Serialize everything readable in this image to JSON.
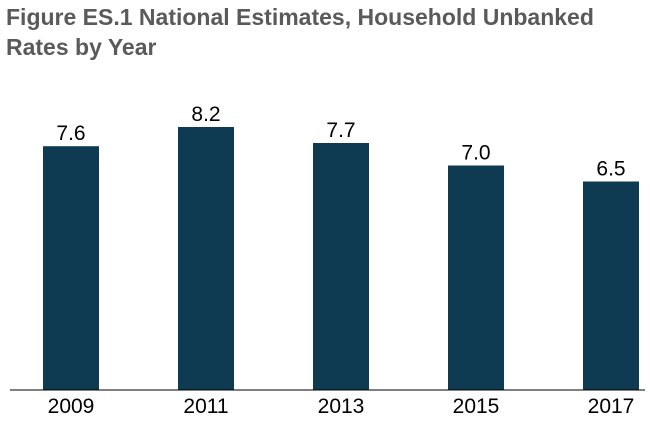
{
  "header": {
    "title_line1": "Figure ES.1 National Estimates, Household Unbanked",
    "title_line2": "Rates by Year"
  },
  "colors": {
    "bar": "#0e3a52",
    "title": "#5a5a5a",
    "axis": "#000000"
  },
  "chart_data": {
    "type": "bar",
    "title": "Figure ES.1 National Estimates, Household Unbanked Rates by Year",
    "xlabel": "",
    "ylabel": "",
    "categories": [
      "2009",
      "2011",
      "2013",
      "2015",
      "2017"
    ],
    "values": [
      7.6,
      8.2,
      7.7,
      7.0,
      6.5
    ],
    "value_labels": [
      "7.6",
      "8.2",
      "7.7",
      "7.0",
      "6.5"
    ],
    "ylim": [
      0,
      8.2
    ],
    "grid": false,
    "legend": "none"
  }
}
